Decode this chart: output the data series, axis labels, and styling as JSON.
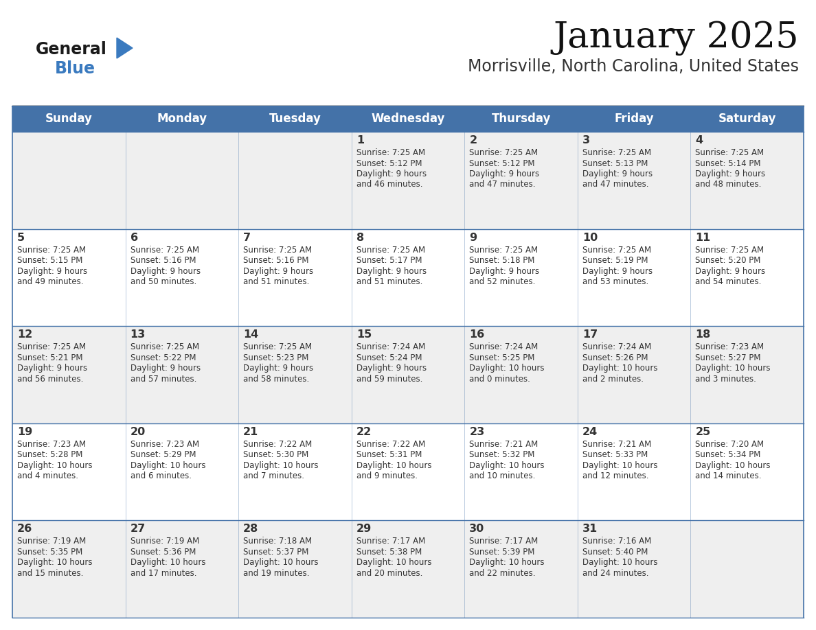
{
  "title": "January 2025",
  "subtitle": "Morrisville, North Carolina, United States",
  "days_of_week": [
    "Sunday",
    "Monday",
    "Tuesday",
    "Wednesday",
    "Thursday",
    "Friday",
    "Saturday"
  ],
  "header_bg": "#4472a8",
  "header_text": "#ffffff",
  "row_bg_odd": "#efefef",
  "row_bg_even": "#ffffff",
  "cell_text_color": "#333333",
  "day_number_color": "#333333",
  "grid_color": "#4472a8",
  "title_color": "#111111",
  "subtitle_color": "#333333",
  "logo_general_color": "#1a1a1a",
  "logo_blue_color": "#3a7abf",
  "calendar_data": [
    [
      null,
      null,
      null,
      {
        "day": 1,
        "sunrise": "7:25 AM",
        "sunset": "5:12 PM",
        "daylight_h": "9 hours",
        "daylight_m": "and 46 minutes."
      },
      {
        "day": 2,
        "sunrise": "7:25 AM",
        "sunset": "5:12 PM",
        "daylight_h": "9 hours",
        "daylight_m": "and 47 minutes."
      },
      {
        "day": 3,
        "sunrise": "7:25 AM",
        "sunset": "5:13 PM",
        "daylight_h": "9 hours",
        "daylight_m": "and 47 minutes."
      },
      {
        "day": 4,
        "sunrise": "7:25 AM",
        "sunset": "5:14 PM",
        "daylight_h": "9 hours",
        "daylight_m": "and 48 minutes."
      }
    ],
    [
      {
        "day": 5,
        "sunrise": "7:25 AM",
        "sunset": "5:15 PM",
        "daylight_h": "9 hours",
        "daylight_m": "and 49 minutes."
      },
      {
        "day": 6,
        "sunrise": "7:25 AM",
        "sunset": "5:16 PM",
        "daylight_h": "9 hours",
        "daylight_m": "and 50 minutes."
      },
      {
        "day": 7,
        "sunrise": "7:25 AM",
        "sunset": "5:16 PM",
        "daylight_h": "9 hours",
        "daylight_m": "and 51 minutes."
      },
      {
        "day": 8,
        "sunrise": "7:25 AM",
        "sunset": "5:17 PM",
        "daylight_h": "9 hours",
        "daylight_m": "and 51 minutes."
      },
      {
        "day": 9,
        "sunrise": "7:25 AM",
        "sunset": "5:18 PM",
        "daylight_h": "9 hours",
        "daylight_m": "and 52 minutes."
      },
      {
        "day": 10,
        "sunrise": "7:25 AM",
        "sunset": "5:19 PM",
        "daylight_h": "9 hours",
        "daylight_m": "and 53 minutes."
      },
      {
        "day": 11,
        "sunrise": "7:25 AM",
        "sunset": "5:20 PM",
        "daylight_h": "9 hours",
        "daylight_m": "and 54 minutes."
      }
    ],
    [
      {
        "day": 12,
        "sunrise": "7:25 AM",
        "sunset": "5:21 PM",
        "daylight_h": "9 hours",
        "daylight_m": "and 56 minutes."
      },
      {
        "day": 13,
        "sunrise": "7:25 AM",
        "sunset": "5:22 PM",
        "daylight_h": "9 hours",
        "daylight_m": "and 57 minutes."
      },
      {
        "day": 14,
        "sunrise": "7:25 AM",
        "sunset": "5:23 PM",
        "daylight_h": "9 hours",
        "daylight_m": "and 58 minutes."
      },
      {
        "day": 15,
        "sunrise": "7:24 AM",
        "sunset": "5:24 PM",
        "daylight_h": "9 hours",
        "daylight_m": "and 59 minutes."
      },
      {
        "day": 16,
        "sunrise": "7:24 AM",
        "sunset": "5:25 PM",
        "daylight_h": "10 hours",
        "daylight_m": "and 0 minutes."
      },
      {
        "day": 17,
        "sunrise": "7:24 AM",
        "sunset": "5:26 PM",
        "daylight_h": "10 hours",
        "daylight_m": "and 2 minutes."
      },
      {
        "day": 18,
        "sunrise": "7:23 AM",
        "sunset": "5:27 PM",
        "daylight_h": "10 hours",
        "daylight_m": "and 3 minutes."
      }
    ],
    [
      {
        "day": 19,
        "sunrise": "7:23 AM",
        "sunset": "5:28 PM",
        "daylight_h": "10 hours",
        "daylight_m": "and 4 minutes."
      },
      {
        "day": 20,
        "sunrise": "7:23 AM",
        "sunset": "5:29 PM",
        "daylight_h": "10 hours",
        "daylight_m": "and 6 minutes."
      },
      {
        "day": 21,
        "sunrise": "7:22 AM",
        "sunset": "5:30 PM",
        "daylight_h": "10 hours",
        "daylight_m": "and 7 minutes."
      },
      {
        "day": 22,
        "sunrise": "7:22 AM",
        "sunset": "5:31 PM",
        "daylight_h": "10 hours",
        "daylight_m": "and 9 minutes."
      },
      {
        "day": 23,
        "sunrise": "7:21 AM",
        "sunset": "5:32 PM",
        "daylight_h": "10 hours",
        "daylight_m": "and 10 minutes."
      },
      {
        "day": 24,
        "sunrise": "7:21 AM",
        "sunset": "5:33 PM",
        "daylight_h": "10 hours",
        "daylight_m": "and 12 minutes."
      },
      {
        "day": 25,
        "sunrise": "7:20 AM",
        "sunset": "5:34 PM",
        "daylight_h": "10 hours",
        "daylight_m": "and 14 minutes."
      }
    ],
    [
      {
        "day": 26,
        "sunrise": "7:19 AM",
        "sunset": "5:35 PM",
        "daylight_h": "10 hours",
        "daylight_m": "and 15 minutes."
      },
      {
        "day": 27,
        "sunrise": "7:19 AM",
        "sunset": "5:36 PM",
        "daylight_h": "10 hours",
        "daylight_m": "and 17 minutes."
      },
      {
        "day": 28,
        "sunrise": "7:18 AM",
        "sunset": "5:37 PM",
        "daylight_h": "10 hours",
        "daylight_m": "and 19 minutes."
      },
      {
        "day": 29,
        "sunrise": "7:17 AM",
        "sunset": "5:38 PM",
        "daylight_h": "10 hours",
        "daylight_m": "and 20 minutes."
      },
      {
        "day": 30,
        "sunrise": "7:17 AM",
        "sunset": "5:39 PM",
        "daylight_h": "10 hours",
        "daylight_m": "and 22 minutes."
      },
      {
        "day": 31,
        "sunrise": "7:16 AM",
        "sunset": "5:40 PM",
        "daylight_h": "10 hours",
        "daylight_m": "and 24 minutes."
      },
      null
    ]
  ],
  "fig_width": 11.88,
  "fig_height": 9.18,
  "dpi": 100
}
